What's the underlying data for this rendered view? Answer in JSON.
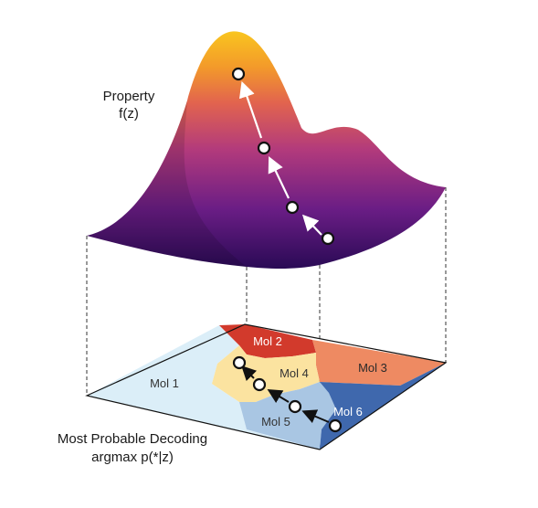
{
  "surface_label": {
    "line1": "Property",
    "line2": "f(z)"
  },
  "plane_label": {
    "line1": "Most Probable Decoding",
    "line2": "argmax p(*|z)"
  },
  "regions": [
    {
      "name": "Mol 1",
      "color": "#dbeef8",
      "text_color": "#333333"
    },
    {
      "name": "Mol 2",
      "color": "#d23a2c",
      "text_color": "#ffffff"
    },
    {
      "name": "Mol 3",
      "color": "#ee8a62",
      "text_color": "#2a2a2a"
    },
    {
      "name": "Mol 4",
      "color": "#fbe3a0",
      "text_color": "#333333"
    },
    {
      "name": "Mol 5",
      "color": "#a9c6e3",
      "text_color": "#333333"
    },
    {
      "name": "Mol 6",
      "color": "#3f68ad",
      "text_color": "#ffffff"
    }
  ],
  "surface_gradient": [
    "#2a0a55",
    "#6a1d85",
    "#b23a7c",
    "#e2644e",
    "#f39a2a",
    "#f9c51f"
  ]
}
